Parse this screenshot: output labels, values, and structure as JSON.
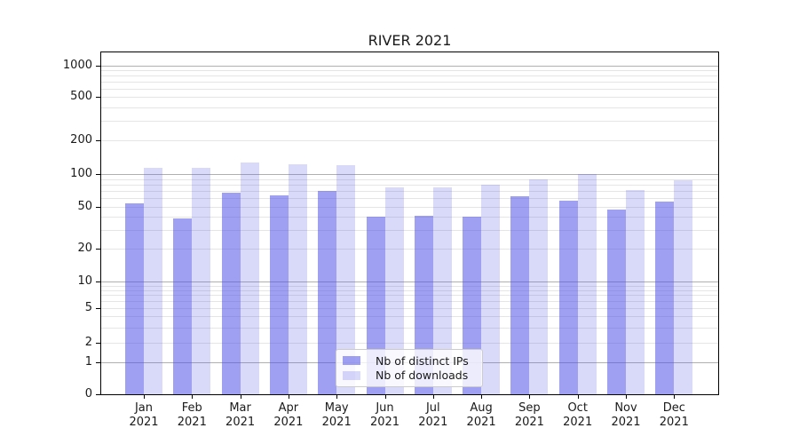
{
  "title": "RIVER 2021",
  "year": "2021",
  "chart_data": {
    "type": "bar",
    "title": "RIVER 2021",
    "categories": [
      "Jan 2021",
      "Feb 2021",
      "Mar 2021",
      "Apr 2021",
      "May 2021",
      "Jun 2021",
      "Jul 2021",
      "Aug 2021",
      "Sep 2021",
      "Oct 2021",
      "Nov 2021",
      "Dec 2021"
    ],
    "series": [
      {
        "name": "Nb of distinct IPs",
        "values": [
          54,
          39,
          67,
          64,
          70,
          40,
          41,
          40,
          63,
          57,
          47,
          56
        ],
        "fill": "rgba(82,82,232,0.55)",
        "approx_hex": "#9f9ff2"
      },
      {
        "name": "Nb of downloads",
        "values": [
          113,
          113,
          126,
          122,
          119,
          75,
          75,
          80,
          90,
          100,
          71,
          88
        ],
        "fill": "rgba(82,82,232,0.22)",
        "approx_hex": "#d8d8f9"
      }
    ],
    "xlabel": "",
    "ylabel": "",
    "yscale": "symlog",
    "yticks": [
      0,
      1,
      2,
      5,
      10,
      20,
      50,
      100,
      200,
      500,
      1000
    ],
    "ylim": [
      0,
      1400
    ],
    "grid": "on",
    "legend_position": "lower center"
  },
  "legend": {
    "items": [
      {
        "label": "Nb of distinct IPs"
      },
      {
        "label": "Nb of downloads"
      }
    ]
  },
  "colors": {
    "bar_ips": "rgba(82,82,232,0.55)",
    "bar_downloads": "rgba(82,82,232,0.22)",
    "grid_major": "#b0b0b0",
    "grid_minor": "#e5e5e5",
    "axis": "#000000",
    "text": "#1a1a1a",
    "legend_border": "#cccccc"
  }
}
